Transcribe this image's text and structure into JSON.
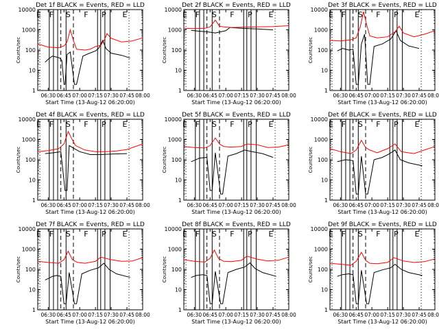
{
  "chart_data": {
    "type": "line",
    "yscale": "log",
    "ylim": [
      1,
      10000
    ],
    "yticks": [
      "1",
      "10",
      "100",
      "1000",
      "10000"
    ],
    "ylabel": "Counts/sec",
    "xlabel": "Start Time (13-Aug-12 06:20:00)",
    "xlim": [
      "06:20",
      "08:00"
    ],
    "xticks": [
      "06:30",
      "06:45",
      "07:00",
      "07:15",
      "07:30",
      "07:45",
      "08:00"
    ],
    "colors": {
      "events": "#000000",
      "lld": "#ff0000"
    },
    "annotations": [
      {
        "letter": "E",
        "time": "06:21"
      },
      {
        "letter": "F",
        "time": "06:33"
      },
      {
        "letter": "S",
        "time": "06:49"
      },
      {
        "letter": "F",
        "time": "07:06"
      },
      {
        "letter": "P",
        "time": "07:23"
      },
      {
        "letter": "E",
        "time": "07:43"
      }
    ],
    "vlines_solid": [
      "06:31",
      "06:35",
      "06:39",
      "06:47",
      "07:17",
      "07:20",
      "07:24",
      "07:29"
    ],
    "vlines_dashed": [
      "06:42",
      "06:54"
    ],
    "vlines_dotted": [
      "06:22",
      "07:47"
    ],
    "panels": [
      {
        "title": "Det 1f BLACK = Events, RED = LLD",
        "lld": [
          [
            "06:20",
            200
          ],
          [
            "06:30",
            140
          ],
          [
            "06:40",
            130
          ],
          [
            "06:45",
            160
          ],
          [
            "06:48",
            250
          ],
          [
            "06:51",
            1000
          ],
          [
            "06:54",
            300
          ],
          [
            "06:57",
            110
          ],
          [
            "07:05",
            100
          ],
          [
            "07:10",
            110
          ],
          [
            "07:15",
            150
          ],
          [
            "07:20",
            170
          ],
          [
            "07:24",
            350
          ],
          [
            "07:26",
            650
          ],
          [
            "07:30",
            380
          ],
          [
            "07:40",
            250
          ],
          [
            "07:50",
            280
          ],
          [
            "08:00",
            400
          ]
        ],
        "events": [
          [
            "06:27",
            25
          ],
          [
            "06:30",
            35
          ],
          [
            "06:34",
            50
          ],
          [
            "06:38",
            45
          ],
          [
            "06:41",
            40
          ],
          [
            "06:43",
            30
          ],
          [
            "06:45",
            2
          ],
          [
            "06:46",
            2
          ],
          [
            "06:48",
            60
          ],
          [
            "06:51",
            80
          ],
          [
            "06:55",
            2
          ],
          [
            "06:57",
            2
          ],
          [
            "07:03",
            50
          ],
          [
            "07:08",
            65
          ],
          [
            "07:15",
            90
          ],
          [
            "07:18",
            120
          ],
          [
            "07:22",
            300
          ],
          [
            "07:25",
            120
          ],
          [
            "07:30",
            70
          ],
          [
            "07:40",
            55
          ],
          [
            "07:48",
            40
          ]
        ]
      },
      {
        "title": "Det 2f BLACK = Events, RED = LLD",
        "lld": [
          [
            "06:20",
            1200
          ],
          [
            "06:30",
            1150
          ],
          [
            "06:40",
            1200
          ],
          [
            "06:45",
            1400
          ],
          [
            "06:50",
            3000
          ],
          [
            "06:54",
            1500
          ],
          [
            "06:58",
            1400
          ],
          [
            "07:05",
            1300
          ],
          [
            "07:15",
            1350
          ],
          [
            "07:30",
            1400
          ],
          [
            "07:45",
            1450
          ],
          [
            "08:00",
            1600
          ]
        ],
        "events": [
          [
            "06:27",
            950
          ],
          [
            "06:35",
            850
          ],
          [
            "06:42",
            800
          ],
          [
            "06:50",
            700
          ],
          [
            "07:00",
            900
          ],
          [
            "07:04",
            1300
          ],
          [
            "07:15",
            1200
          ],
          [
            "07:30",
            1100
          ],
          [
            "07:45",
            1000
          ]
        ]
      },
      {
        "title": "Det 3f BLACK = Events, RED = LLD",
        "lld": [
          [
            "06:20",
            300
          ],
          [
            "06:30",
            280
          ],
          [
            "06:40",
            320
          ],
          [
            "06:45",
            400
          ],
          [
            "06:49",
            1500
          ],
          [
            "06:52",
            8000
          ],
          [
            "06:55",
            1800
          ],
          [
            "06:58",
            500
          ],
          [
            "07:05",
            400
          ],
          [
            "07:15",
            450
          ],
          [
            "07:22",
            800
          ],
          [
            "07:26",
            1500
          ],
          [
            "07:30",
            700
          ],
          [
            "07:40",
            450
          ],
          [
            "07:50",
            600
          ],
          [
            "08:00",
            900
          ]
        ],
        "events": [
          [
            "06:27",
            90
          ],
          [
            "06:32",
            120
          ],
          [
            "06:38",
            100
          ],
          [
            "06:42",
            110
          ],
          [
            "06:45",
            2
          ],
          [
            "06:47",
            2
          ],
          [
            "06:50",
            200
          ],
          [
            "06:53",
            600
          ],
          [
            "06:56",
            2
          ],
          [
            "06:58",
            2
          ],
          [
            "07:02",
            150
          ],
          [
            "07:10",
            200
          ],
          [
            "07:18",
            350
          ],
          [
            "07:23",
            900
          ],
          [
            "07:27",
            300
          ],
          [
            "07:35",
            160
          ],
          [
            "07:45",
            120
          ]
        ]
      },
      {
        "title": "Det 4f BLACK = Events, RED = LLD",
        "lld": [
          [
            "06:20",
            250
          ],
          [
            "06:30",
            280
          ],
          [
            "06:40",
            350
          ],
          [
            "06:45",
            600
          ],
          [
            "06:49",
            2500
          ],
          [
            "06:52",
            1200
          ],
          [
            "06:56",
            500
          ],
          [
            "07:05",
            300
          ],
          [
            "07:15",
            250
          ],
          [
            "07:25",
            250
          ],
          [
            "07:35",
            270
          ],
          [
            "07:45",
            320
          ],
          [
            "08:00",
            600
          ]
        ],
        "events": [
          [
            "06:27",
            200
          ],
          [
            "06:35",
            220
          ],
          [
            "06:42",
            250
          ],
          [
            "06:46",
            3
          ],
          [
            "06:48",
            3
          ],
          [
            "06:50",
            500
          ],
          [
            "06:55",
            350
          ],
          [
            "07:00",
            250
          ],
          [
            "07:10",
            180
          ],
          [
            "07:20",
            180
          ],
          [
            "07:30",
            190
          ],
          [
            "07:45",
            200
          ]
        ]
      },
      {
        "title": "Det 5f BLACK = Events, RED = LLD",
        "lld": [
          [
            "06:20",
            450
          ],
          [
            "06:30",
            400
          ],
          [
            "06:40",
            380
          ],
          [
            "06:45",
            500
          ],
          [
            "06:50",
            1200
          ],
          [
            "06:54",
            600
          ],
          [
            "06:58",
            450
          ],
          [
            "07:05",
            420
          ],
          [
            "07:15",
            450
          ],
          [
            "07:20",
            600
          ],
          [
            "07:30",
            550
          ],
          [
            "07:40",
            400
          ],
          [
            "07:50",
            420
          ],
          [
            "08:00",
            550
          ]
        ],
        "events": [
          [
            "06:27",
            80
          ],
          [
            "06:35",
            120
          ],
          [
            "06:42",
            130
          ],
          [
            "06:45",
            3
          ],
          [
            "06:47",
            3
          ],
          [
            "06:50",
            220
          ],
          [
            "06:55",
            2
          ],
          [
            "06:57",
            2
          ],
          [
            "07:02",
            150
          ],
          [
            "07:10",
            200
          ],
          [
            "07:18",
            300
          ],
          [
            "07:25",
            250
          ],
          [
            "07:35",
            200
          ],
          [
            "07:45",
            130
          ]
        ]
      },
      {
        "title": "Det 6f BLACK = Events, RED = LLD",
        "lld": [
          [
            "06:20",
            350
          ],
          [
            "06:30",
            250
          ],
          [
            "06:40",
            200
          ],
          [
            "06:45",
            300
          ],
          [
            "06:50",
            900
          ],
          [
            "06:54",
            400
          ],
          [
            "06:58",
            300
          ],
          [
            "07:05",
            220
          ],
          [
            "07:15",
            350
          ],
          [
            "07:22",
            600
          ],
          [
            "07:28",
            250
          ],
          [
            "07:40",
            200
          ],
          [
            "07:50",
            300
          ],
          [
            "08:00",
            450
          ]
        ],
        "events": [
          [
            "06:27",
            80
          ],
          [
            "06:35",
            100
          ],
          [
            "06:42",
            90
          ],
          [
            "06:45",
            2
          ],
          [
            "06:47",
            2
          ],
          [
            "06:50",
            150
          ],
          [
            "06:54",
            2
          ],
          [
            "06:56",
            2
          ],
          [
            "07:02",
            100
          ],
          [
            "07:10",
            130
          ],
          [
            "07:17",
            200
          ],
          [
            "07:22",
            300
          ],
          [
            "07:27",
            100
          ],
          [
            "07:35",
            70
          ],
          [
            "07:48",
            50
          ]
        ]
      },
      {
        "title": "Det 7f BLACK = Events, RED = LLD",
        "lld": [
          [
            "06:20",
            250
          ],
          [
            "06:30",
            220
          ],
          [
            "06:40",
            200
          ],
          [
            "06:45",
            300
          ],
          [
            "06:49",
            800
          ],
          [
            "06:53",
            300
          ],
          [
            "06:58",
            220
          ],
          [
            "07:05",
            200
          ],
          [
            "07:15",
            250
          ],
          [
            "07:20",
            400
          ],
          [
            "07:30",
            300
          ],
          [
            "07:40",
            250
          ],
          [
            "07:50",
            260
          ],
          [
            "08:00",
            380
          ]
        ],
        "events": [
          [
            "06:27",
            30
          ],
          [
            "06:30",
            35
          ],
          [
            "06:34",
            45
          ],
          [
            "06:38",
            50
          ],
          [
            "06:42",
            45
          ],
          [
            "06:45",
            2
          ],
          [
            "06:47",
            2
          ],
          [
            "06:50",
            70
          ],
          [
            "06:55",
            2
          ],
          [
            "06:57",
            2
          ],
          [
            "07:02",
            60
          ],
          [
            "07:10",
            90
          ],
          [
            "07:18",
            120
          ],
          [
            "07:23",
            200
          ],
          [
            "07:28",
            100
          ],
          [
            "07:35",
            60
          ],
          [
            "07:48",
            40
          ]
        ]
      },
      {
        "title": "Det 8f BLACK = Events, RED = LLD",
        "lld": [
          [
            "06:20",
            300
          ],
          [
            "06:30",
            250
          ],
          [
            "06:40",
            230
          ],
          [
            "06:45",
            350
          ],
          [
            "06:49",
            900
          ],
          [
            "06:53",
            350
          ],
          [
            "06:58",
            250
          ],
          [
            "07:05",
            240
          ],
          [
            "07:15",
            280
          ],
          [
            "07:20",
            450
          ],
          [
            "07:30",
            320
          ],
          [
            "07:40",
            260
          ],
          [
            "07:50",
            280
          ],
          [
            "08:00",
            400
          ]
        ],
        "events": [
          [
            "06:27",
            40
          ],
          [
            "06:32",
            50
          ],
          [
            "06:38",
            55
          ],
          [
            "06:42",
            50
          ],
          [
            "06:45",
            2
          ],
          [
            "06:47",
            2
          ],
          [
            "06:50",
            80
          ],
          [
            "06:55",
            2
          ],
          [
            "06:57",
            2
          ],
          [
            "07:02",
            70
          ],
          [
            "07:10",
            100
          ],
          [
            "07:18",
            130
          ],
          [
            "07:23",
            210
          ],
          [
            "07:28",
            110
          ],
          [
            "07:35",
            70
          ],
          [
            "07:48",
            45
          ]
        ]
      },
      {
        "title": "Det 9f BLACK = Events, RED = LLD",
        "lld": [
          [
            "06:20",
            200
          ],
          [
            "06:30",
            180
          ],
          [
            "06:40",
            160
          ],
          [
            "06:45",
            250
          ],
          [
            "06:50",
            700
          ],
          [
            "06:54",
            280
          ],
          [
            "06:58",
            200
          ],
          [
            "07:05",
            190
          ],
          [
            "07:15",
            220
          ],
          [
            "07:21",
            380
          ],
          [
            "07:30",
            260
          ],
          [
            "07:40",
            220
          ],
          [
            "07:50",
            240
          ],
          [
            "08:00",
            330
          ]
        ],
        "events": [
          [
            "06:27",
            45
          ],
          [
            "06:32",
            55
          ],
          [
            "06:38",
            60
          ],
          [
            "06:42",
            55
          ],
          [
            "06:45",
            2
          ],
          [
            "06:47",
            2
          ],
          [
            "06:50",
            90
          ],
          [
            "06:55",
            2
          ],
          [
            "06:57",
            2
          ],
          [
            "07:02",
            70
          ],
          [
            "07:10",
            95
          ],
          [
            "07:18",
            120
          ],
          [
            "07:22",
            180
          ],
          [
            "07:28",
            100
          ],
          [
            "07:35",
            70
          ],
          [
            "07:48",
            50
          ]
        ]
      }
    ]
  }
}
